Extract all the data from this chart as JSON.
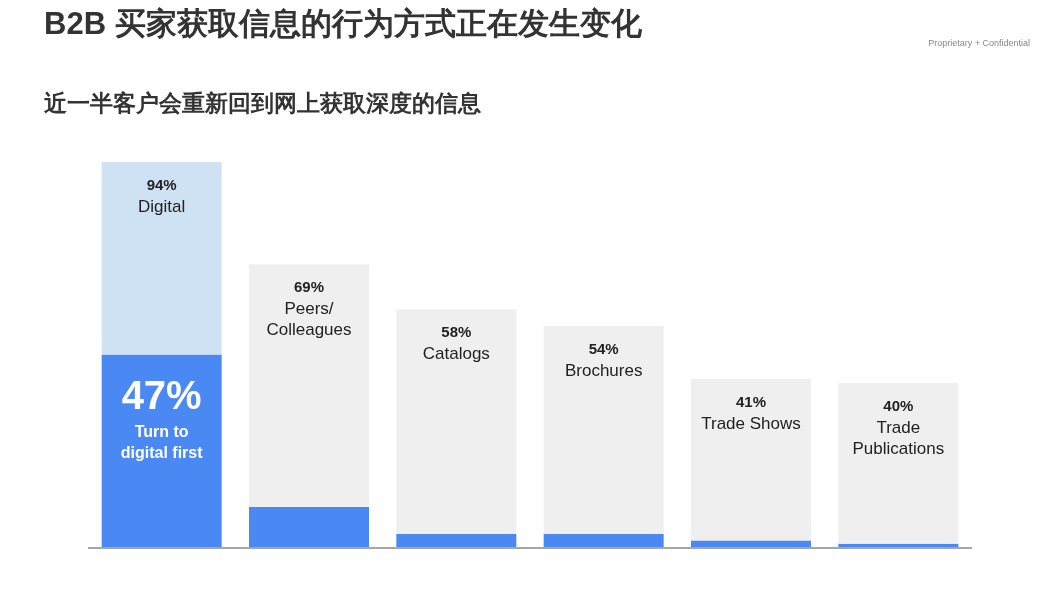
{
  "chart_data": {
    "type": "bar",
    "stacked": true,
    "title": "B2B 买家获取信息的行为方式正在发生变化",
    "subtitle": "近一半客户会重新回到网上获取深度的信息",
    "categories": [
      "Digital",
      "Peers/\nColleagues",
      "Catalogs",
      "Brochures",
      "Trade Shows",
      "Trade\nPublications"
    ],
    "series": [
      {
        "color": "#4a89f3",
        "values": [
          47,
          9.8,
          3.2,
          3.2,
          1.6,
          0.8
        ],
        "value_labels": [
          "47%",
          null,
          null,
          null,
          null,
          null
        ]
      },
      {
        "colors": [
          "#cfe2f3",
          "#efefef",
          "#efefef",
          "#efefef",
          "#efefef",
          "#efefef"
        ],
        "values": [
          47,
          59.2,
          54.8,
          50.8,
          39.4,
          39.2
        ]
      }
    ],
    "totals": [
      "94%",
      "69%",
      "58%",
      "54%",
      "41%",
      "40%"
    ],
    "annotations": [
      "Turn to\ndigital first",
      "Proprietary + Confidential"
    ]
  }
}
